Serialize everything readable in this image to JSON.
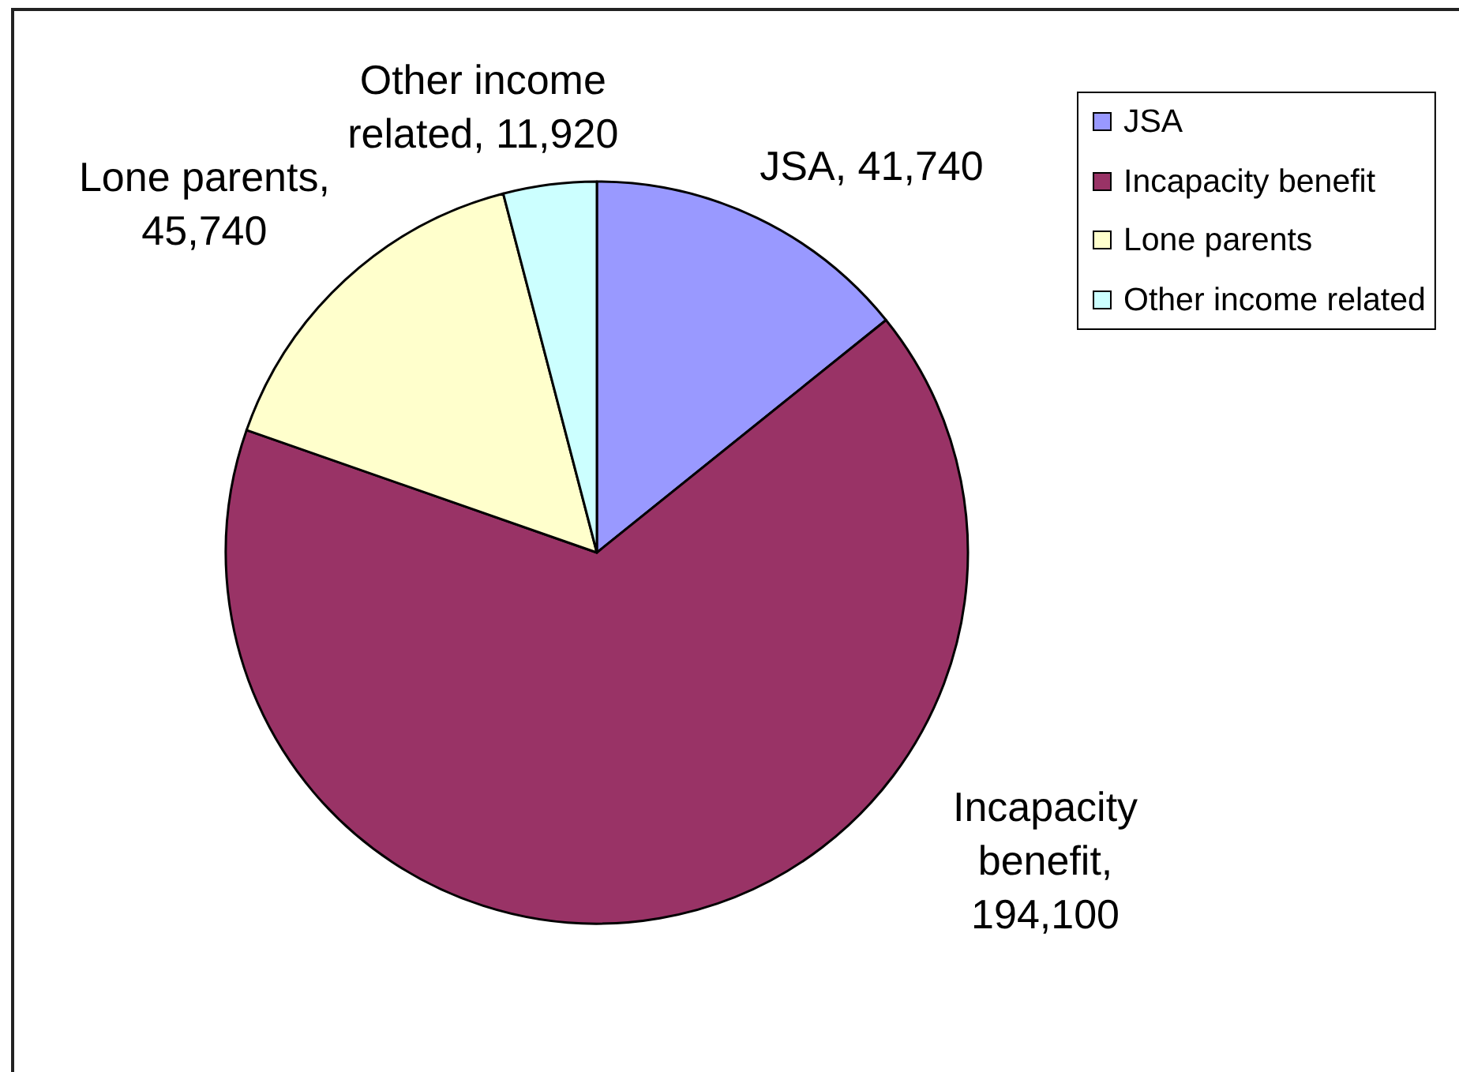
{
  "chart_data": {
    "type": "pie",
    "categories": [
      "JSA",
      "Incapacity benefit",
      "Lone parents",
      "Other income related"
    ],
    "values": [
      41740,
      194100,
      45740,
      11920
    ],
    "value_labels": [
      "JSA, 41,740",
      "Incapacity benefit, 194,100",
      "Lone parents, 45,740",
      "Other income related, 11,920"
    ],
    "colors": [
      "#9999ff",
      "#993366",
      "#ffffcc",
      "#ccffff"
    ],
    "legend": "top right"
  }
}
